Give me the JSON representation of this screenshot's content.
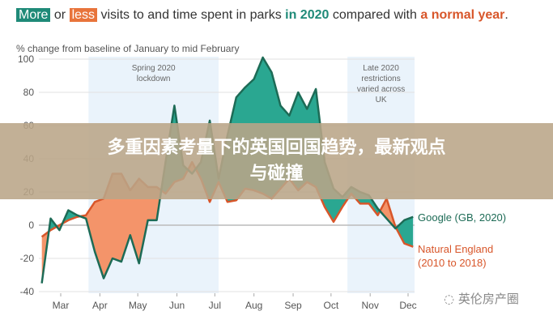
{
  "header": {
    "more": "More",
    "or": " or ",
    "less": "less",
    "mid": " visits to and time spent in parks ",
    "in2020": "in 2020",
    "compared": " compared with ",
    "normal": "a normal year",
    "period": "."
  },
  "banner": {
    "line1": "多重因素考量下的英国回国趋势，最新观点",
    "line2": "与碰撞"
  },
  "watermark": "英伦房产圈",
  "chart_data": {
    "type": "area",
    "ylabel": "% change from baseline of January to mid February",
    "ylim": [
      -40,
      100
    ],
    "yticks": [
      -40,
      -20,
      0,
      20,
      40,
      60,
      80,
      100
    ],
    "xticks": [
      "Mar",
      "Apr",
      "May",
      "Jun",
      "Jul",
      "Aug",
      "Sep",
      "Oct",
      "Nov",
      "Dec"
    ],
    "xtick_dates": [
      "2020-03-01",
      "2020-04-01",
      "2020-05-01",
      "2020-06-01",
      "2020-07-01",
      "2020-08-01",
      "2020-09-01",
      "2020-10-01",
      "2020-11-01",
      "2020-12-01"
    ],
    "grid": true,
    "colors": {
      "more": "#2aa791",
      "less": "#f4946a",
      "google_line": "#1d6b56",
      "ne_line": "#d8562a",
      "shade": "#eaf3fb"
    },
    "periods": [
      {
        "label": [
          "Spring 2020",
          "lockdown"
        ],
        "start": "2020-03-23",
        "end": "2020-07-04"
      },
      {
        "label": [
          "Late 2020",
          "restrictions",
          "varied across",
          "UK"
        ],
        "start": "2020-10-14",
        "end": "2020-12-07"
      }
    ],
    "x": [
      "2020-02-15",
      "2020-02-22",
      "2020-02-29",
      "2020-03-07",
      "2020-03-14",
      "2020-03-21",
      "2020-03-28",
      "2020-04-04",
      "2020-04-11",
      "2020-04-18",
      "2020-04-25",
      "2020-05-02",
      "2020-05-09",
      "2020-05-16",
      "2020-05-23",
      "2020-05-30",
      "2020-06-06",
      "2020-06-13",
      "2020-06-20",
      "2020-06-27",
      "2020-07-04",
      "2020-07-11",
      "2020-07-18",
      "2020-07-25",
      "2020-08-01",
      "2020-08-08",
      "2020-08-15",
      "2020-08-22",
      "2020-08-29",
      "2020-09-05",
      "2020-09-12",
      "2020-09-19",
      "2020-09-26",
      "2020-10-03",
      "2020-10-10",
      "2020-10-17",
      "2020-10-24",
      "2020-10-31",
      "2020-11-07",
      "2020-11-14",
      "2020-11-21",
      "2020-11-28",
      "2020-12-05"
    ],
    "series": [
      {
        "name": "Google (GB, 2020)",
        "values": [
          -35,
          4,
          -3,
          9,
          6,
          4,
          -16,
          -32,
          -20,
          -22,
          -6,
          -23,
          3,
          3,
          38,
          72,
          36,
          31,
          38,
          63,
          28,
          54,
          77,
          83,
          88,
          101,
          92,
          72,
          66,
          80,
          70,
          82,
          38,
          22,
          17,
          23,
          20,
          18,
          10,
          4,
          -2,
          3,
          5
        ]
      },
      {
        "name": "Natural England (2010 to 2018)",
        "values": [
          -7,
          -3,
          0,
          3,
          5,
          6,
          14,
          16,
          31,
          31,
          21,
          28,
          23,
          23,
          19,
          26,
          28,
          38,
          28,
          14,
          26,
          14,
          15,
          22,
          21,
          19,
          16,
          22,
          28,
          21,
          26,
          23,
          11,
          2,
          11,
          19,
          13,
          13,
          6,
          16,
          -1,
          -11,
          -13
        ]
      }
    ],
    "legend_labels": {
      "google": "Google (GB, 2020)",
      "ne_1": "Natural England",
      "ne_2": "(2010 to 2018)"
    }
  }
}
